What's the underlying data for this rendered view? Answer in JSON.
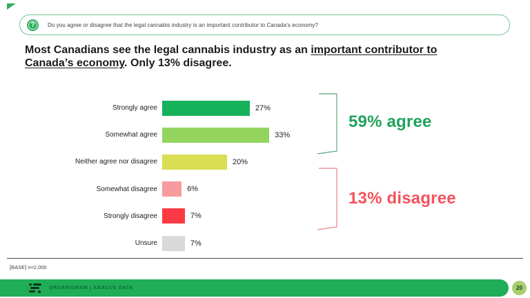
{
  "question": {
    "icon_glyph": "?",
    "text": "Do you agree or disagree that the legal cannabis industry is an important contributor to Canada’s economy?"
  },
  "title": {
    "line1_normal": "Most Canadians see the legal cannabis industry as an ",
    "line1_underline": "important contributor to",
    "line2_underline": "Canada’s economy",
    "line2_normal": ". Only 13% disagree."
  },
  "chart_data": {
    "type": "bar",
    "orientation": "horizontal",
    "categories": [
      "Strongly agree",
      "Somewhat agree",
      "Neither agree nor disagree",
      "Somewhat disagree",
      "Strongly disagree",
      "Unsure"
    ],
    "values": [
      27,
      33,
      20,
      6,
      7,
      7
    ],
    "labels": [
      "27%",
      "33%",
      "20%",
      "6%",
      "7%",
      "7%"
    ],
    "colors": [
      "#16b25b",
      "#93d45f",
      "#dade52",
      "#f89b9e",
      "#fb3a43",
      "#d9d9d9"
    ],
    "xlim": [
      0,
      35
    ],
    "grid": false,
    "title": "",
    "xlabel": "",
    "ylabel": "",
    "summary": {
      "agree_total": 59,
      "disagree_total": 13
    }
  },
  "annotations": {
    "agree": {
      "text": "59% agree",
      "color": "#1fa35a",
      "bracket_color": "#5fa57c"
    },
    "disagree": {
      "text": "13% disagree",
      "color": "#f4525c",
      "bracket_color": "#e8808d"
    }
  },
  "footnote": "[BASE] n=2,000",
  "footer": {
    "brand": "ORGANIGRAM  |  ABACUS DATA",
    "page_number": "20",
    "bar_color": "#1fae57",
    "badge_color": "#a7cf6f"
  }
}
